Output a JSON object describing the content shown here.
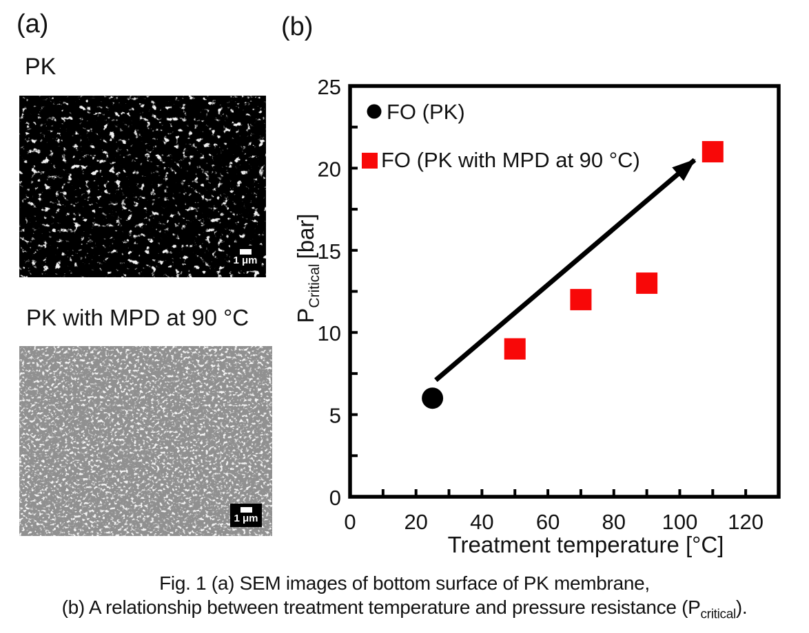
{
  "panel_a": {
    "label": "(a)",
    "sem1_title": "PK",
    "sem2_title": "PK with MPD at 90 °C",
    "scalebar_label": "1 μm"
  },
  "panel_b": {
    "label": "(b)"
  },
  "chart_data": {
    "type": "scatter",
    "xlabel": "Treatment temperature [°C]",
    "ylabel_main": "P",
    "ylabel_sub": "Critical",
    "ylabel_unit": "[bar]",
    "xlim": [
      0,
      130
    ],
    "ylim": [
      0,
      25
    ],
    "xticks": [
      0,
      20,
      40,
      60,
      80,
      100,
      120
    ],
    "yticks": [
      0,
      5,
      10,
      15,
      20,
      25
    ],
    "x_minor_step": 10,
    "y_minor_step": 2.5,
    "grid": false,
    "legend_position": "top-left-inside",
    "series": [
      {
        "name": "FO (PK)",
        "marker": "circle",
        "color": "#000000",
        "size": 31,
        "points": [
          [
            25,
            6
          ]
        ]
      },
      {
        "name": "FO (PK with MPD at 90 °C)",
        "marker": "square",
        "color": "#f80808",
        "size": 31,
        "points": [
          [
            50,
            9
          ],
          [
            70,
            12
          ],
          [
            90,
            13
          ],
          [
            110,
            21
          ]
        ]
      }
    ],
    "arrow": {
      "from": [
        26,
        7.1
      ],
      "to": [
        104.5,
        20.5
      ]
    }
  },
  "caption": {
    "line1": "Fig. 1 (a) SEM images of bottom surface of PK membrane,",
    "line2_pre": "(b) A relationship between treatment temperature and pressure resistance (P",
    "line2_sub": "critical",
    "line2_post": ")."
  }
}
